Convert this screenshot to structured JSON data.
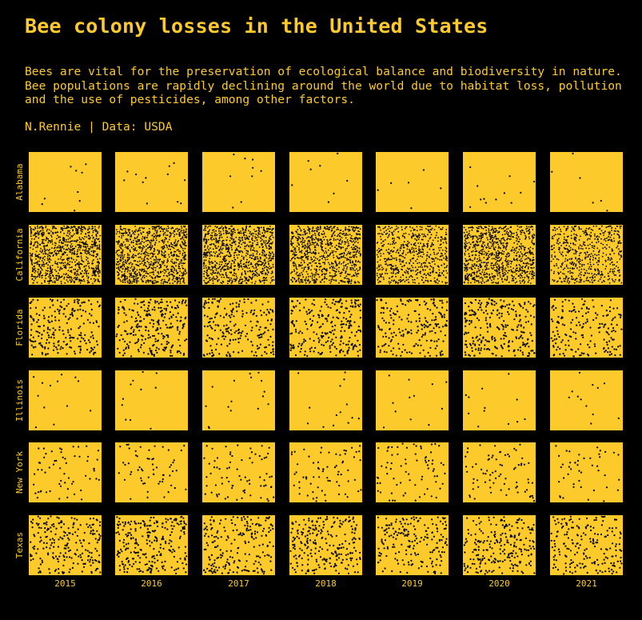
{
  "title": "Bee colony losses in the United States",
  "subtitle": "Bees are vital for the preservation of ecological balance and biodiversity in nature. Bee populations are rapidly declining around the world due to habitat loss, pollution and the use of pesticides, among other factors.",
  "caption": "N.Rennie | Data: USDA",
  "colors": {
    "background": "#000000",
    "panel": "#fdca2c",
    "dot": "#000000",
    "text": "#fdca2c"
  },
  "chart_data": {
    "type": "scatter",
    "description_of_encoding": "",
    "rows": [
      "Alabama",
      "California",
      "Florida",
      "Illinois",
      "New York",
      "Texas"
    ],
    "columns": [
      "2015",
      "2016",
      "2017",
      "2018",
      "2019",
      "2020",
      "2021"
    ],
    "dot_counts": [
      [
        9,
        12,
        9,
        8,
        6,
        12,
        6
      ],
      [
        900,
        900,
        900,
        800,
        600,
        850,
        550
      ],
      [
        220,
        260,
        210,
        250,
        200,
        260,
        180
      ],
      [
        13,
        11,
        16,
        14,
        12,
        12,
        12
      ],
      [
        60,
        60,
        75,
        70,
        75,
        75,
        45
      ],
      [
        220,
        260,
        210,
        240,
        190,
        230,
        200
      ]
    ]
  }
}
